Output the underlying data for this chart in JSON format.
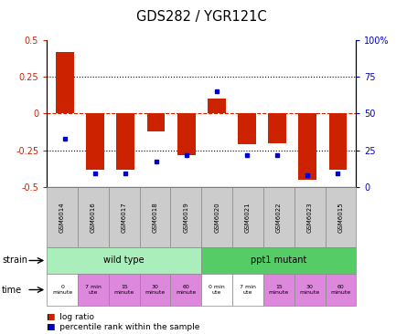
{
  "title": "GDS282 / YGR121C",
  "samples": [
    "GSM6014",
    "GSM6016",
    "GSM6017",
    "GSM6018",
    "GSM6019",
    "GSM6020",
    "GSM6021",
    "GSM6022",
    "GSM6023",
    "GSM6015"
  ],
  "log_ratio": [
    0.42,
    -0.38,
    -0.38,
    -0.12,
    -0.28,
    0.1,
    -0.21,
    -0.2,
    -0.45,
    -0.38
  ],
  "percentile_rank": [
    33,
    9,
    9,
    17.5,
    22,
    65,
    22,
    22,
    8,
    9
  ],
  "ylim": [
    -0.5,
    0.5
  ],
  "yticks_left": [
    -0.5,
    -0.25,
    0,
    0.25,
    0.5
  ],
  "yticks_right": [
    0,
    25,
    50,
    75,
    100
  ],
  "bar_color": "#cc2200",
  "dot_color": "#0000cc",
  "zero_line_color": "#cc2200",
  "dotted_line_color": "#000000",
  "strain_groups": [
    {
      "label": "wild type",
      "start": 0,
      "end": 5,
      "color": "#aaeebb"
    },
    {
      "label": "ppt1 mutant",
      "start": 5,
      "end": 10,
      "color": "#55cc66"
    }
  ],
  "time_labels": [
    {
      "text": "0\nminute",
      "color": "#ffffff"
    },
    {
      "text": "7 min\nute",
      "color": "#dd88dd"
    },
    {
      "text": "15\nminute",
      "color": "#dd88dd"
    },
    {
      "text": "30\nminute",
      "color": "#dd88dd"
    },
    {
      "text": "60\nminute",
      "color": "#dd88dd"
    },
    {
      "text": "0 min\nute",
      "color": "#ffffff"
    },
    {
      "text": "7 min\nute",
      "color": "#ffffff"
    },
    {
      "text": "15\nminute",
      "color": "#dd88dd"
    },
    {
      "text": "30\nminute",
      "color": "#dd88dd"
    },
    {
      "text": "60\nminute",
      "color": "#dd88dd"
    }
  ],
  "bg_color": "#ffffff",
  "axis_label_color_left": "#cc2200",
  "axis_label_color_right": "#0000cc",
  "bar_width": 0.6,
  "fig_width": 4.45,
  "fig_height": 3.66,
  "fig_dpi": 100
}
